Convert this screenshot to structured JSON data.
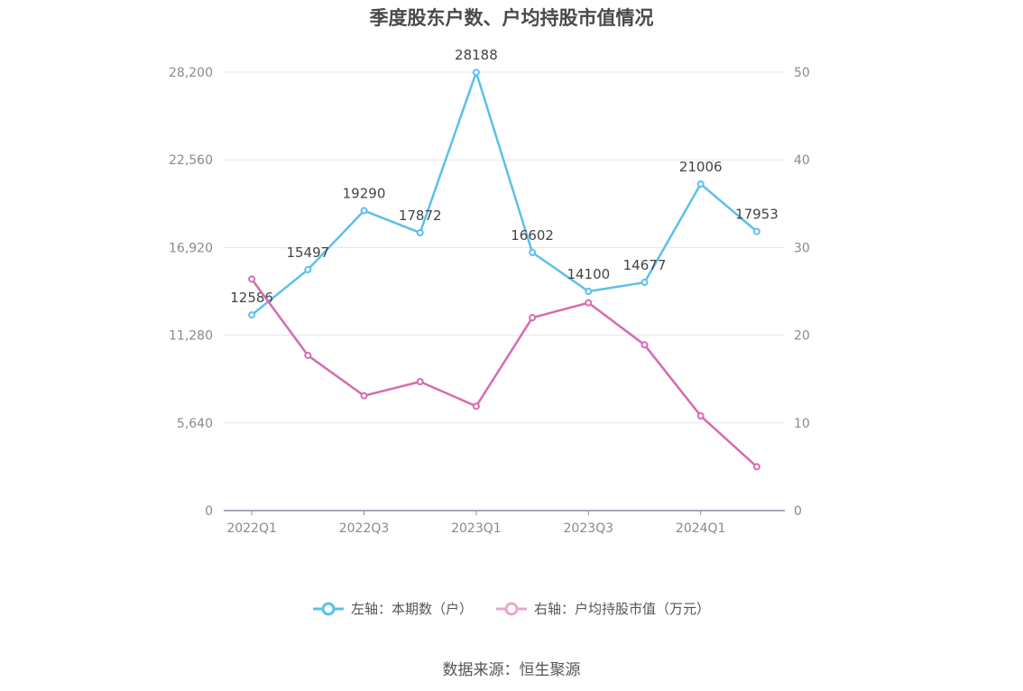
{
  "chart_data": {
    "type": "line",
    "title": "季度股东户数、户均持股市值情况",
    "categories": [
      "2022Q1",
      "2022Q2",
      "2022Q3",
      "2022Q4",
      "2023Q1",
      "2023Q2",
      "2023Q3",
      "2023Q4",
      "2024Q1",
      "2024Q2"
    ],
    "x_tick_labels": [
      "2022Q1",
      "2022Q3",
      "2023Q1",
      "2023Q3",
      "2024Q1"
    ],
    "left_axis": {
      "ylim": [
        0,
        28200
      ],
      "ticks": [
        "0",
        "5,640",
        "11,280",
        "16,920",
        "22,560",
        "28,200"
      ]
    },
    "right_axis": {
      "ylim": [
        0,
        50
      ],
      "ticks": [
        "0",
        "10",
        "20",
        "30",
        "40",
        "50"
      ]
    },
    "series": [
      {
        "name": "左轴：本期数（户）",
        "axis": "left",
        "color": "#5bc0eb",
        "values": [
          12586,
          15497,
          19290,
          17872,
          28188,
          16602,
          14100,
          14677,
          21006,
          17953
        ],
        "labels": [
          "12586",
          "15497",
          "19290",
          "17872",
          "28188",
          "16602",
          "14100",
          "14677",
          "21006",
          "17953"
        ]
      },
      {
        "name": "右轴：户均持股市值（万元）",
        "axis": "right",
        "color": "#d66bb0",
        "values": [
          26.4,
          17.7,
          13.1,
          14.7,
          11.9,
          22.0,
          23.7,
          18.9,
          10.8,
          5.0
        ]
      }
    ],
    "grid": true,
    "legend_position": "bottom"
  },
  "source": "数据来源：恒生聚源"
}
